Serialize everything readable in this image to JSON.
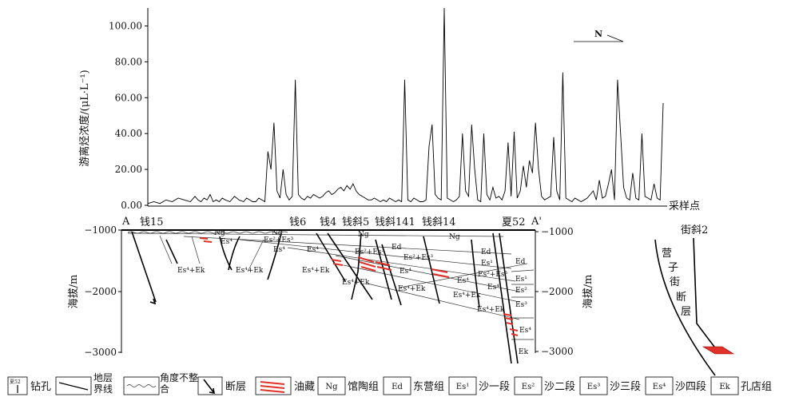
{
  "chart": {
    "ylabel": "游离烃浓度/(μL·L⁻¹)",
    "xlabel": "采样点",
    "yticks": [
      "100.00",
      "80.00",
      "60.00",
      "40.00",
      "20.00",
      "0.00"
    ],
    "north": "N"
  },
  "chart_data": {
    "type": "line",
    "ylabel": "游离烃浓度/(μL·L⁻¹)",
    "xlabel": "采样点",
    "ylim": [
      0,
      110
    ],
    "x": [
      0,
      8,
      16,
      24,
      32,
      40,
      48,
      56,
      62,
      66,
      70,
      74,
      78,
      82,
      86,
      90,
      94,
      98,
      102,
      108,
      114,
      120,
      126,
      130,
      134,
      138,
      142,
      146,
      150,
      154,
      158,
      162,
      166,
      170,
      174,
      178,
      182,
      186,
      190,
      194,
      198,
      202,
      206,
      210,
      214,
      218,
      222,
      226,
      230,
      234,
      238,
      242,
      246,
      250,
      254,
      258,
      262,
      266,
      270,
      274,
      278,
      282,
      286,
      290,
      294,
      298,
      302,
      306,
      310,
      314,
      318,
      322,
      326,
      330,
      334,
      338,
      342,
      346,
      350,
      354,
      358,
      362,
      366,
      370,
      374,
      378,
      382,
      386,
      390,
      394,
      398,
      402,
      406,
      410,
      414,
      418,
      422,
      426,
      430,
      434,
      438,
      442,
      446,
      450,
      454,
      458,
      462,
      466,
      470,
      474,
      478,
      482,
      486,
      490,
      494,
      498,
      502,
      506,
      510,
      514,
      518,
      522,
      526,
      530,
      534,
      538,
      542,
      546,
      550,
      554,
      558,
      562,
      566,
      570,
      574,
      578,
      582,
      586,
      590,
      594,
      598,
      602,
      606,
      610,
      614,
      618,
      622,
      626,
      630,
      634,
      638,
      642,
      646,
      650,
      654,
      658,
      662,
      666,
      670,
      674,
      678
    ],
    "series": [
      {
        "values": [
          1,
          2,
          1,
          3,
          2,
          4,
          3,
          2,
          5,
          3,
          2,
          4,
          3,
          6,
          2,
          3,
          2,
          4,
          3,
          2,
          5,
          3,
          2,
          4,
          3,
          2,
          2,
          4,
          3,
          2,
          30,
          20,
          46,
          8,
          4,
          20,
          6,
          3,
          5,
          70,
          6,
          4,
          3,
          5,
          4,
          6,
          5,
          4,
          5,
          7,
          8,
          6,
          7,
          9,
          10,
          8,
          11,
          9,
          12,
          8,
          6,
          5,
          4,
          3,
          3,
          4,
          3,
          2,
          3,
          2,
          4,
          3,
          2,
          3,
          2,
          70,
          3,
          2,
          4,
          3,
          2,
          2,
          3,
          33,
          45,
          6,
          4,
          3,
          110,
          4,
          3,
          2,
          3,
          5,
          40,
          8,
          5,
          45,
          20,
          3,
          2,
          40,
          6,
          3,
          10,
          4,
          5,
          3,
          8,
          35,
          5,
          41,
          4,
          8,
          22,
          10,
          25,
          18,
          46,
          20,
          5,
          3,
          4,
          5,
          38,
          8,
          3,
          74,
          4,
          3,
          2,
          4,
          3,
          2,
          3,
          4,
          6,
          8,
          3,
          14,
          4,
          5,
          12,
          20,
          3,
          70,
          40,
          10,
          4,
          3,
          18,
          4,
          3,
          40,
          5,
          4,
          3,
          12,
          4,
          3,
          57
        ]
      }
    ]
  },
  "section": {
    "end_left": "A",
    "end_right": "A'",
    "left_axis_label": "海拔/m",
    "right_axis_label": "海拔/m",
    "left_ticks": [
      "−1000",
      "−2000",
      "−3000"
    ],
    "right_ticks": [
      "−1000",
      "−2000",
      "−3000"
    ],
    "wells": [
      "钱15",
      "钱6",
      "钱4",
      "钱斜5",
      "钱斜141",
      "钱斜14",
      "夏52"
    ],
    "formations": {
      "ng": "Ng",
      "ed": "Ed",
      "es1": "Es¹",
      "es2": "Es²",
      "es3": "Es³",
      "es4": "Es⁴",
      "es4ek": "Es⁴+Ek",
      "es23": "Es²+Es³",
      "ek": "Ek"
    },
    "side_well": "街斜2",
    "side_fault_label": [
      "营",
      "子",
      "街",
      "断",
      "层"
    ]
  },
  "legend": {
    "well_tag": "夏52",
    "items": [
      {
        "label": "钻孔"
      },
      {
        "label": "地层界线"
      },
      {
        "label": "角度不整合"
      },
      {
        "label": "断层"
      },
      {
        "label": "油藏"
      },
      {
        "code": "Ng",
        "label": "馆陶组"
      },
      {
        "code": "Ed",
        "label": "东营组"
      },
      {
        "code": "Es¹",
        "label": "沙一段"
      },
      {
        "code": "Es²",
        "label": "沙二段"
      },
      {
        "code": "Es³",
        "label": "沙三段"
      },
      {
        "code": "Es⁴",
        "label": "沙四段"
      },
      {
        "code": "Ek",
        "label": "孔店组"
      }
    ]
  }
}
